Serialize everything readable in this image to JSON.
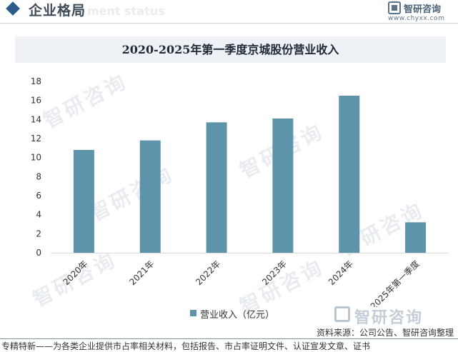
{
  "header": {
    "section_title": "企业格局",
    "ghost_text": "ment status",
    "brand_name": "智研咨询",
    "brand_url": "www.chyxx.com"
  },
  "chart_data": {
    "type": "bar",
    "title": "2020-2025年第一季度京城股份营业收入",
    "categories": [
      "2020年",
      "2021年",
      "2022年",
      "2023年",
      "2024年",
      "2025年第一季度"
    ],
    "series": [
      {
        "name": "营业收入（亿元）",
        "values": [
          10.8,
          11.8,
          13.7,
          14.1,
          16.5,
          3.2
        ]
      }
    ],
    "yticks": [
      0,
      2,
      4,
      6,
      8,
      10,
      12,
      14,
      16,
      18
    ],
    "ylim": [
      0,
      18
    ],
    "grid": false,
    "legend_position": "bottom-center",
    "bar_color": "#5e94aa"
  },
  "watermark": {
    "text": "智研咨询"
  },
  "footer": {
    "logo_text": "智研咨询",
    "source": "资料来源：公司公告、智研咨询整理",
    "tagline": "专精特新——为各类企业提供市占率相关材料，包括报告、市占率证明文件、认证宣发文章、证书"
  }
}
